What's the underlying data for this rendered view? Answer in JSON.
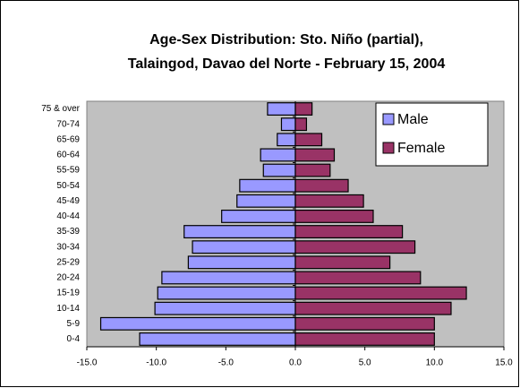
{
  "chart_data": {
    "type": "pyramid",
    "title": [
      "Age-Sex Distribution: Sto. Niño (partial),",
      "Talaingod, Davao del Norte - February 15, 2004"
    ],
    "categories": [
      "0-4",
      "5-9",
      "10-14",
      "15-19",
      "20-24",
      "25-29",
      "30-34",
      "35-39",
      "40-44",
      "45-49",
      "50-54",
      "55-59",
      "60-64",
      "65-69",
      "70-74",
      "75 & over"
    ],
    "series": [
      {
        "name": "Male",
        "color": "#9999ff",
        "values": [
          -11.2,
          -14.0,
          -10.1,
          -9.9,
          -9.6,
          -7.7,
          -7.4,
          -8.0,
          -5.3,
          -4.2,
          -4.0,
          -2.3,
          -2.5,
          -1.3,
          -1.0,
          -2.0
        ]
      },
      {
        "name": "Female",
        "color": "#993366",
        "values": [
          10.0,
          10.0,
          11.2,
          12.3,
          9.0,
          6.8,
          8.6,
          7.7,
          5.6,
          4.9,
          3.8,
          2.5,
          2.8,
          1.9,
          0.8,
          1.2
        ]
      }
    ],
    "xlim": [
      -15,
      15
    ],
    "xticks": [
      {
        "value": -15,
        "label": "-15.0"
      },
      {
        "value": -10,
        "label": "-10.0"
      },
      {
        "value": -5,
        "label": "-5.0"
      },
      {
        "value": 0,
        "label": "0.0"
      },
      {
        "value": 5,
        "label": "5.0"
      },
      {
        "value": 10,
        "label": "10.0"
      },
      {
        "value": 15,
        "label": "15.0"
      }
    ],
    "plot_background": "#c0c0c0",
    "legend": "top-right"
  }
}
